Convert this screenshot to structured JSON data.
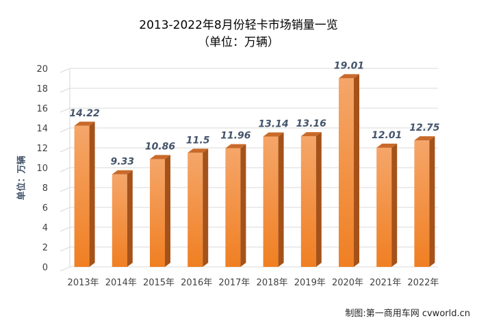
{
  "chart_data": {
    "type": "bar",
    "title": "2013-2022年8月份轻卡市场销量一览",
    "subtitle": "（单位：万辆）",
    "ylabel": "单位：万辆",
    "xlabel": "",
    "ylim": [
      0,
      20
    ],
    "yticks": [
      0,
      2,
      4,
      6,
      8,
      10,
      12,
      14,
      16,
      18,
      20
    ],
    "categories": [
      "2013年",
      "2014年",
      "2015年",
      "2016年",
      "2017年",
      "2018年",
      "2019年",
      "2020年",
      "2021年",
      "2022年"
    ],
    "values": [
      14.22,
      9.33,
      10.86,
      11.5,
      11.96,
      13.14,
      13.16,
      19.01,
      12.01,
      12.75
    ],
    "value_labels": [
      "14.22",
      "9.33",
      "10.86",
      "11.5",
      "11.96",
      "13.14",
      "13.16",
      "19.01",
      "12.01",
      "12.75"
    ],
    "grid": true,
    "legend": "none"
  },
  "colors": {
    "bar_front_top": "#f5a66a",
    "bar_front_bottom": "#f07f22",
    "bar_side": "#a5521a",
    "bar_top": "#c96a2a",
    "grid": "#d9d9d9",
    "label": "#44546a",
    "axis_text": "#404040"
  },
  "credit": "制图:第一商用车网 cvworld.cn"
}
